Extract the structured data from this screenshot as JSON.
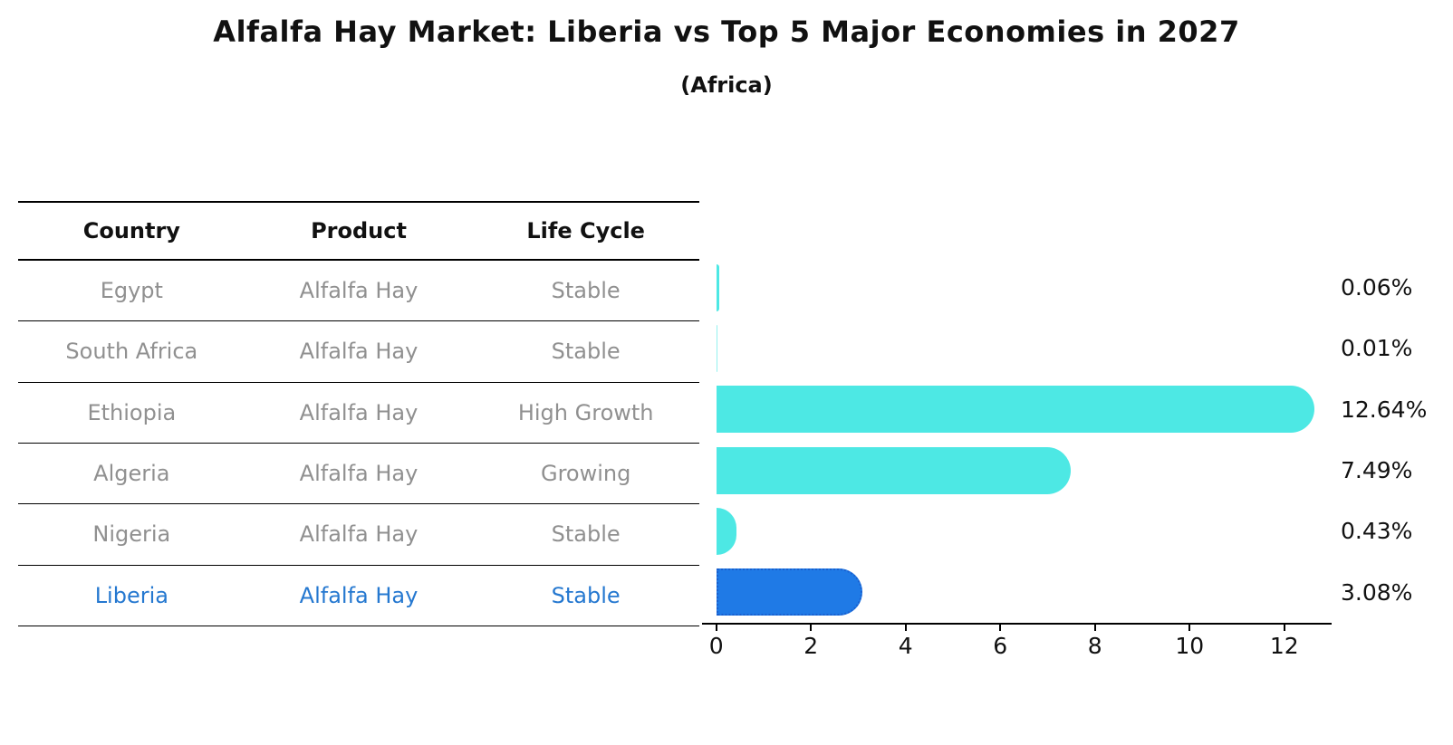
{
  "header": {
    "title": "Alfalfa Hay Market: Liberia vs Top 5 Major Economies in 2027",
    "subtitle": "(Africa)"
  },
  "table": {
    "columns": [
      "Country",
      "Product",
      "Life Cycle"
    ],
    "rows": [
      {
        "country": "Egypt",
        "product": "Alfalfa Hay",
        "life_cycle": "Stable"
      },
      {
        "country": "South Africa",
        "product": "Alfalfa Hay",
        "life_cycle": "Stable"
      },
      {
        "country": "Ethiopia",
        "product": "Alfalfa Hay",
        "life_cycle": "High Growth"
      },
      {
        "country": "Algeria",
        "product": "Alfalfa Hay",
        "life_cycle": "Growing"
      },
      {
        "country": "Nigeria",
        "product": "Alfalfa Hay",
        "life_cycle": "Stable"
      },
      {
        "country": "Liberia",
        "product": "Alfalfa Hay",
        "life_cycle": "Stable"
      }
    ]
  },
  "chart_data": {
    "type": "bar",
    "orientation": "horizontal",
    "title": "Alfalfa Hay Market: Liberia vs Top 5 Major Economies in 2027",
    "subtitle": "(Africa)",
    "categories": [
      "Egypt",
      "South Africa",
      "Ethiopia",
      "Algeria",
      "Nigeria",
      "Liberia"
    ],
    "values": [
      0.06,
      0.01,
      12.64,
      7.49,
      0.43,
      3.08
    ],
    "value_labels": [
      "0.06%",
      "0.01%",
      "12.64%",
      "7.49%",
      "0.43%",
      "3.08%"
    ],
    "x_ticks": [
      0,
      2,
      4,
      6,
      8,
      10,
      12
    ],
    "xlim": [
      -0.3,
      13.0
    ],
    "grid": false,
    "legend": false,
    "highlight_index": 5,
    "colors": {
      "bar": "#4DE8E4",
      "highlight_bar": "#1F7AE6",
      "highlight_border": "#1A5FCE",
      "highlight_text": "#2578D0",
      "row_text": "#909090",
      "axis": "#000000"
    }
  }
}
